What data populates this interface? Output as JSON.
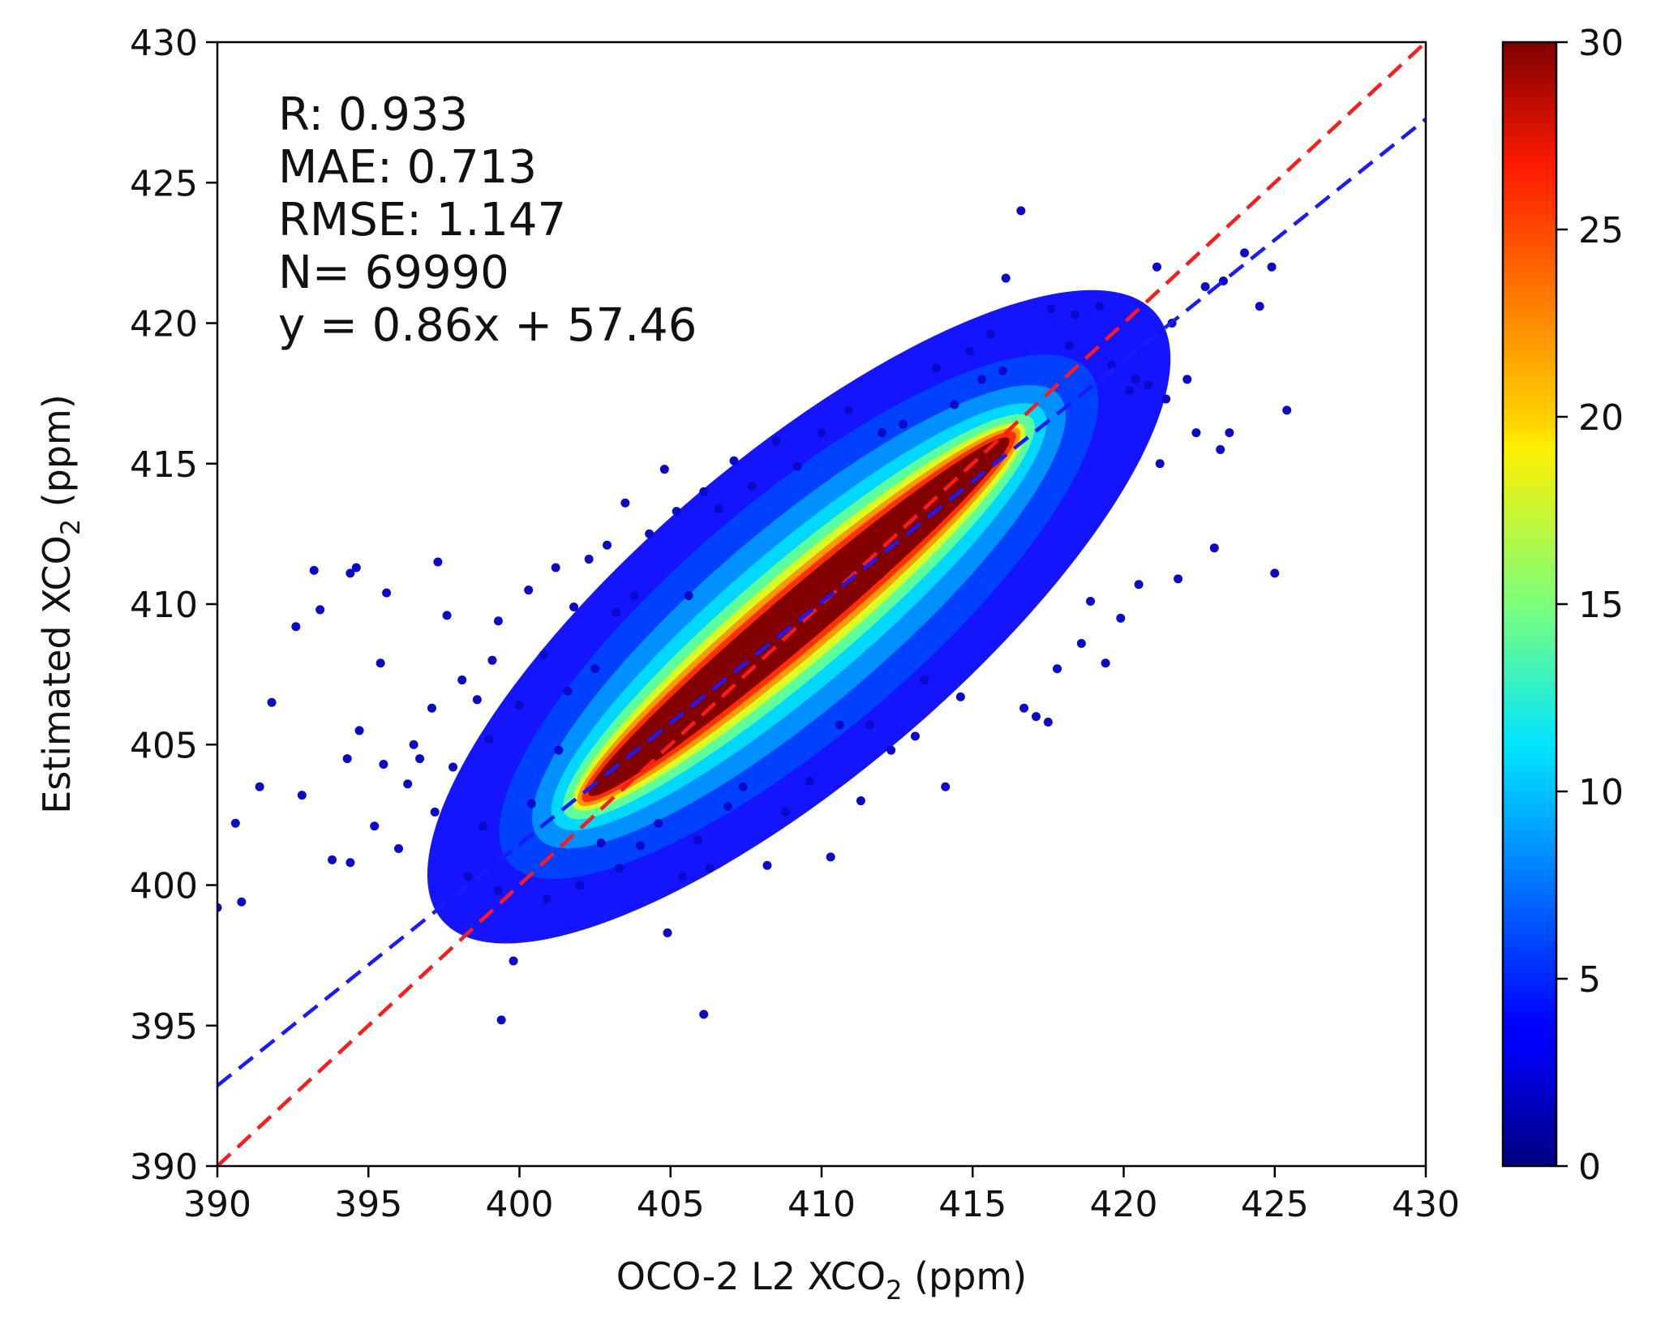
{
  "chart_data": {
    "type": "scatter",
    "subtype": "density-colored scatter",
    "title": "",
    "xlabel": {
      "main": "OCO-2 L2 XCO",
      "sub": "2",
      "unit": " (ppm)"
    },
    "ylabel": {
      "main": "Estimated XCO",
      "sub": "2",
      "unit": " (ppm)"
    },
    "xlim": [
      390,
      430
    ],
    "ylim": [
      390,
      430
    ],
    "xticks": [
      390,
      395,
      400,
      405,
      410,
      415,
      420,
      425,
      430
    ],
    "yticks": [
      390,
      395,
      400,
      405,
      410,
      415,
      420,
      425,
      430
    ],
    "grid": false,
    "colorbar": {
      "colormap": "jet",
      "range": [
        0,
        30
      ],
      "ticks": [
        0,
        5,
        10,
        15,
        20,
        25,
        30
      ]
    },
    "stats": {
      "lines": [
        "R: 0.933",
        "MAE: 0.713",
        "RMSE: 1.147",
        "N= 69990",
        "y = 0.86x + 57.46"
      ],
      "r": 0.933,
      "mae": 0.713,
      "rmse": 1.147,
      "n": 69990
    },
    "reference_lines": [
      {
        "name": "1:1 line",
        "slope": 1,
        "intercept": 0,
        "color": "#ff1a1a",
        "style": "dashed"
      },
      {
        "name": "fit line",
        "slope": 0.86,
        "intercept": 57.46,
        "color": "#1a1aff",
        "style": "dashed"
      }
    ],
    "dense_core": {
      "from": [
        402.3,
        403.2
      ],
      "to": [
        416.2,
        415.9
      ],
      "half_width_ppm": 0.85
    },
    "outliers": [
      [
        390.0,
        399.2
      ],
      [
        390.6,
        402.2
      ],
      [
        390.8,
        399.4
      ],
      [
        391.4,
        403.5
      ],
      [
        391.8,
        406.5
      ],
      [
        392.6,
        409.2
      ],
      [
        392.8,
        403.2
      ],
      [
        393.2,
        411.2
      ],
      [
        393.4,
        409.8
      ],
      [
        393.8,
        400.9
      ],
      [
        394.3,
        404.5
      ],
      [
        394.4,
        400.8
      ],
      [
        394.4,
        411.1
      ],
      [
        394.6,
        411.3
      ],
      [
        394.7,
        405.5
      ],
      [
        395.4,
        407.9
      ],
      [
        395.5,
        404.3
      ],
      [
        395.6,
        410.4
      ],
      [
        395.2,
        402.1
      ],
      [
        396.0,
        401.3
      ],
      [
        396.3,
        403.6
      ],
      [
        396.5,
        405.0
      ],
      [
        396.7,
        404.5
      ],
      [
        397.1,
        406.3
      ],
      [
        397.3,
        411.5
      ],
      [
        397.2,
        402.6
      ],
      [
        397.6,
        409.6
      ],
      [
        397.8,
        404.2
      ],
      [
        398.1,
        407.3
      ],
      [
        398.3,
        400.3
      ],
      [
        398.6,
        406.6
      ],
      [
        398.8,
        402.1
      ],
      [
        399.0,
        405.2
      ],
      [
        399.1,
        408.0
      ],
      [
        399.3,
        409.4
      ],
      [
        399.3,
        399.8
      ],
      [
        399.4,
        395.2
      ],
      [
        399.8,
        397.3
      ],
      [
        400.0,
        406.4
      ],
      [
        400.3,
        410.5
      ],
      [
        400.4,
        402.9
      ],
      [
        400.8,
        408.2
      ],
      [
        400.9,
        399.5
      ],
      [
        401.2,
        411.3
      ],
      [
        401.3,
        404.8
      ],
      [
        401.6,
        406.9
      ],
      [
        401.8,
        409.9
      ],
      [
        402.0,
        400.0
      ],
      [
        402.3,
        411.6
      ],
      [
        402.5,
        407.7
      ],
      [
        402.7,
        401.5
      ],
      [
        402.9,
        412.1
      ],
      [
        403.2,
        409.7
      ],
      [
        403.3,
        400.6
      ],
      [
        403.5,
        413.6
      ],
      [
        403.8,
        410.3
      ],
      [
        404.0,
        401.4
      ],
      [
        404.3,
        412.5
      ],
      [
        404.6,
        402.2
      ],
      [
        404.8,
        414.8
      ],
      [
        404.9,
        398.3
      ],
      [
        405.2,
        413.3
      ],
      [
        405.4,
        400.3
      ],
      [
        405.6,
        410.3
      ],
      [
        405.9,
        401.6
      ],
      [
        406.1,
        414.0
      ],
      [
        406.1,
        395.4
      ],
      [
        406.3,
        400.6
      ],
      [
        406.6,
        413.4
      ],
      [
        406.9,
        402.8
      ],
      [
        407.1,
        415.1
      ],
      [
        407.4,
        403.5
      ],
      [
        407.7,
        414.2
      ],
      [
        408.2,
        400.7
      ],
      [
        408.5,
        415.8
      ],
      [
        408.8,
        402.6
      ],
      [
        409.2,
        414.9
      ],
      [
        409.6,
        403.7
      ],
      [
        410.0,
        416.1
      ],
      [
        410.3,
        401.0
      ],
      [
        410.6,
        405.7
      ],
      [
        410.9,
        416.9
      ],
      [
        411.3,
        403.0
      ],
      [
        411.6,
        405.7
      ],
      [
        412.0,
        416.1
      ],
      [
        412.3,
        404.8
      ],
      [
        412.7,
        416.4
      ],
      [
        413.1,
        405.3
      ],
      [
        413.4,
        407.3
      ],
      [
        413.8,
        418.4
      ],
      [
        414.1,
        403.5
      ],
      [
        414.4,
        417.1
      ],
      [
        414.6,
        406.7
      ],
      [
        414.9,
        419.0
      ],
      [
        415.3,
        418.0
      ],
      [
        415.6,
        419.6
      ],
      [
        416.0,
        418.3
      ],
      [
        416.1,
        421.6
      ],
      [
        416.6,
        424.0
      ],
      [
        416.7,
        406.3
      ],
      [
        417.1,
        406.0
      ],
      [
        417.5,
        405.8
      ],
      [
        417.6,
        420.5
      ],
      [
        417.8,
        407.7
      ],
      [
        418.2,
        419.2
      ],
      [
        418.4,
        420.3
      ],
      [
        418.6,
        408.6
      ],
      [
        418.9,
        410.1
      ],
      [
        419.2,
        420.6
      ],
      [
        419.4,
        407.9
      ],
      [
        419.6,
        418.5
      ],
      [
        419.9,
        409.5
      ],
      [
        420.2,
        417.6
      ],
      [
        420.4,
        418.0
      ],
      [
        420.5,
        410.7
      ],
      [
        420.8,
        417.8
      ],
      [
        421.1,
        422.0
      ],
      [
        421.2,
        415.0
      ],
      [
        421.4,
        417.3
      ],
      [
        421.6,
        420.0
      ],
      [
        421.8,
        410.9
      ],
      [
        422.1,
        418.0
      ],
      [
        422.4,
        416.1
      ],
      [
        422.7,
        421.3
      ],
      [
        423.0,
        412.0
      ],
      [
        423.2,
        415.5
      ],
      [
        423.3,
        421.5
      ],
      [
        423.5,
        416.1
      ],
      [
        424.0,
        422.5
      ],
      [
        424.5,
        420.6
      ],
      [
        424.9,
        422.0
      ],
      [
        425.0,
        411.1
      ],
      [
        425.4,
        416.9
      ]
    ]
  }
}
